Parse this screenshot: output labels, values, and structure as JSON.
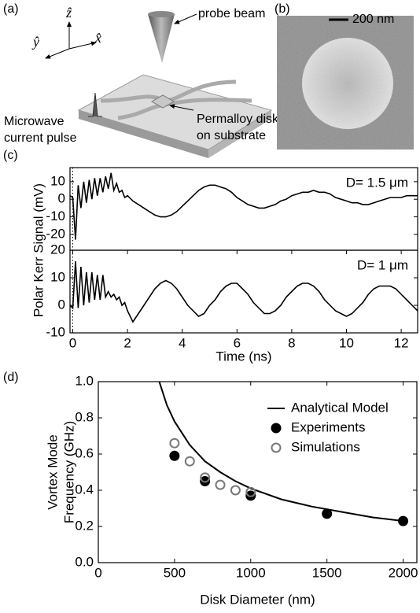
{
  "diagram": {
    "panel_label": "(a)",
    "axis_labels": [
      "ẑ",
      "ŷ",
      "x̂"
    ],
    "probe_beam": "probe beam",
    "pulse_label": [
      "Microwave",
      "current pulse"
    ],
    "disk_label": [
      "Permalloy disks",
      "on substrate"
    ]
  },
  "image": {
    "panel_label": "(b)",
    "scale_bar": "200 nm"
  },
  "chart_data": [
    {
      "type": "line",
      "panel_label": "(c)",
      "y_label": "Polar Kerr Signal (mV)",
      "annotation": "D= 1.5 μm",
      "vline": 0,
      "x": [
        -0.1,
        0,
        0.1,
        0.2,
        0.3,
        0.4,
        0.5,
        0.6,
        0.7,
        0.8,
        0.9,
        1.0,
        1.1,
        1.2,
        1.3,
        1.4,
        1.5,
        1.6,
        1.7,
        1.8,
        1.9,
        2.0,
        2.2,
        2.4,
        2.6,
        2.8,
        3.0,
        3.2,
        3.4,
        3.6,
        3.8,
        4.0,
        4.2,
        4.4,
        4.6,
        4.8,
        5.0,
        5.2,
        5.4,
        5.6,
        5.8,
        6.0,
        6.2,
        6.4,
        6.6,
        6.8,
        7.0,
        7.2,
        7.4,
        7.6,
        7.8,
        8.0,
        8.2,
        8.4,
        8.6,
        8.8,
        9.0,
        9.2,
        9.4,
        9.6,
        9.8,
        10.0,
        10.2,
        10.4,
        10.6,
        10.8,
        11.0,
        11.2,
        11.4,
        11.6,
        11.8,
        12.0,
        12.2,
        12.4,
        12.6
      ],
      "series": [
        {
          "color": "#000000",
          "values": [
            2,
            1,
            -23,
            8,
            -5,
            10,
            -2,
            11,
            0,
            12,
            2,
            12,
            4,
            13,
            6,
            15,
            5,
            9,
            4,
            5,
            1,
            2,
            -1,
            -3,
            -5,
            -7,
            -9,
            -10,
            -10,
            -9,
            -7,
            -4,
            -1,
            2,
            5,
            7,
            8,
            8,
            7,
            6,
            4,
            1,
            -1,
            -3,
            -4,
            -5,
            -5,
            -4,
            -3,
            -1,
            0,
            2,
            3,
            4,
            4,
            5,
            4,
            4,
            3,
            1,
            0,
            -1,
            -2,
            -2,
            -3,
            -3,
            -2,
            -1,
            0,
            1,
            1,
            1,
            2,
            2,
            2
          ]
        }
      ],
      "xlim": [
        -0.1,
        12.6
      ],
      "ylim": [
        -29,
        18
      ],
      "yticks": [
        -20,
        -10,
        0,
        10
      ]
    },
    {
      "type": "line",
      "x_label": "Time (ns)",
      "annotation": "D= 1 μm",
      "vline": 0,
      "x": [
        -0.1,
        0,
        0.1,
        0.2,
        0.3,
        0.4,
        0.5,
        0.6,
        0.7,
        0.8,
        0.9,
        1.0,
        1.1,
        1.2,
        1.3,
        1.4,
        1.5,
        1.6,
        1.7,
        1.8,
        1.9,
        2.0,
        2.2,
        2.4,
        2.6,
        2.8,
        3.0,
        3.2,
        3.4,
        3.6,
        3.8,
        4.0,
        4.2,
        4.4,
        4.6,
        4.8,
        5.0,
        5.2,
        5.4,
        5.6,
        5.8,
        6.0,
        6.2,
        6.4,
        6.6,
        6.8,
        7.0,
        7.2,
        7.4,
        7.6,
        7.8,
        8.0,
        8.2,
        8.4,
        8.6,
        8.8,
        9.0,
        9.2,
        9.4,
        9.6,
        9.8,
        10.0,
        10.2,
        10.4,
        10.6,
        10.8,
        11.0,
        11.2,
        11.4,
        11.6,
        11.8,
        12.0,
        12.2,
        12.4,
        12.6
      ],
      "series": [
        {
          "color": "#000000",
          "values": [
            0,
            -1,
            16,
            -1,
            14,
            0,
            12,
            1,
            12,
            2,
            11,
            2,
            11,
            3,
            5,
            3,
            4,
            2,
            3,
            0,
            1,
            -2,
            -6,
            -3,
            0,
            3,
            6,
            8,
            9,
            8,
            6,
            3,
            0,
            -2,
            -4,
            -3,
            0,
            2,
            5,
            7,
            8,
            8,
            6,
            4,
            1,
            -1,
            -3,
            -3,
            -2,
            0,
            3,
            5,
            7,
            8,
            8,
            7,
            5,
            2,
            0,
            -2,
            -3,
            -4,
            -3,
            -1,
            1,
            4,
            6,
            7,
            7,
            7,
            6,
            4,
            2,
            0,
            -2
          ]
        }
      ],
      "xlim": [
        -0.1,
        12.6
      ],
      "xticks": [
        0,
        2,
        4,
        6,
        8,
        10,
        12
      ],
      "ylim": [
        -10,
        20
      ],
      "yticks": [
        -10,
        0,
        10,
        20
      ]
    },
    {
      "type": "scatter",
      "panel_label": "(d)",
      "x_label": "Disk Diameter (nm)",
      "y_label": [
        "Vortex Mode",
        "Frequency (GHz)"
      ],
      "legend": "upper right",
      "series": [
        {
          "name": "Analytical Model",
          "mode": "line",
          "color": "#000000",
          "x": [
            400,
            450,
            500,
            600,
            700,
            800,
            900,
            1000,
            1200,
            1400,
            1600,
            1800,
            2000
          ],
          "values": [
            1.0,
            0.87,
            0.78,
            0.65,
            0.56,
            0.5,
            0.45,
            0.41,
            0.35,
            0.31,
            0.28,
            0.25,
            0.23
          ]
        },
        {
          "name": "Experiments",
          "mode": "marker",
          "marker": "filled",
          "color": "#000000",
          "x": [
            500,
            700,
            1000,
            1500,
            2000
          ],
          "values": [
            0.59,
            0.45,
            0.37,
            0.27,
            0.23
          ]
        },
        {
          "name": "Simulations",
          "mode": "marker",
          "marker": "open",
          "color": "#777777",
          "x": [
            500,
            600,
            700,
            800,
            900,
            1000
          ],
          "values": [
            0.66,
            0.56,
            0.47,
            0.43,
            0.4,
            0.39
          ]
        }
      ],
      "xlim": [
        0,
        2090
      ],
      "xticks": [
        0,
        500,
        1000,
        1500,
        2000
      ],
      "ylim": [
        0,
        1
      ],
      "yticks": [
        {
          "value": 0,
          "label": "0.0"
        },
        0.2,
        0.4,
        0.6,
        0.8,
        {
          "value": 1,
          "label": "1.0"
        }
      ]
    }
  ]
}
